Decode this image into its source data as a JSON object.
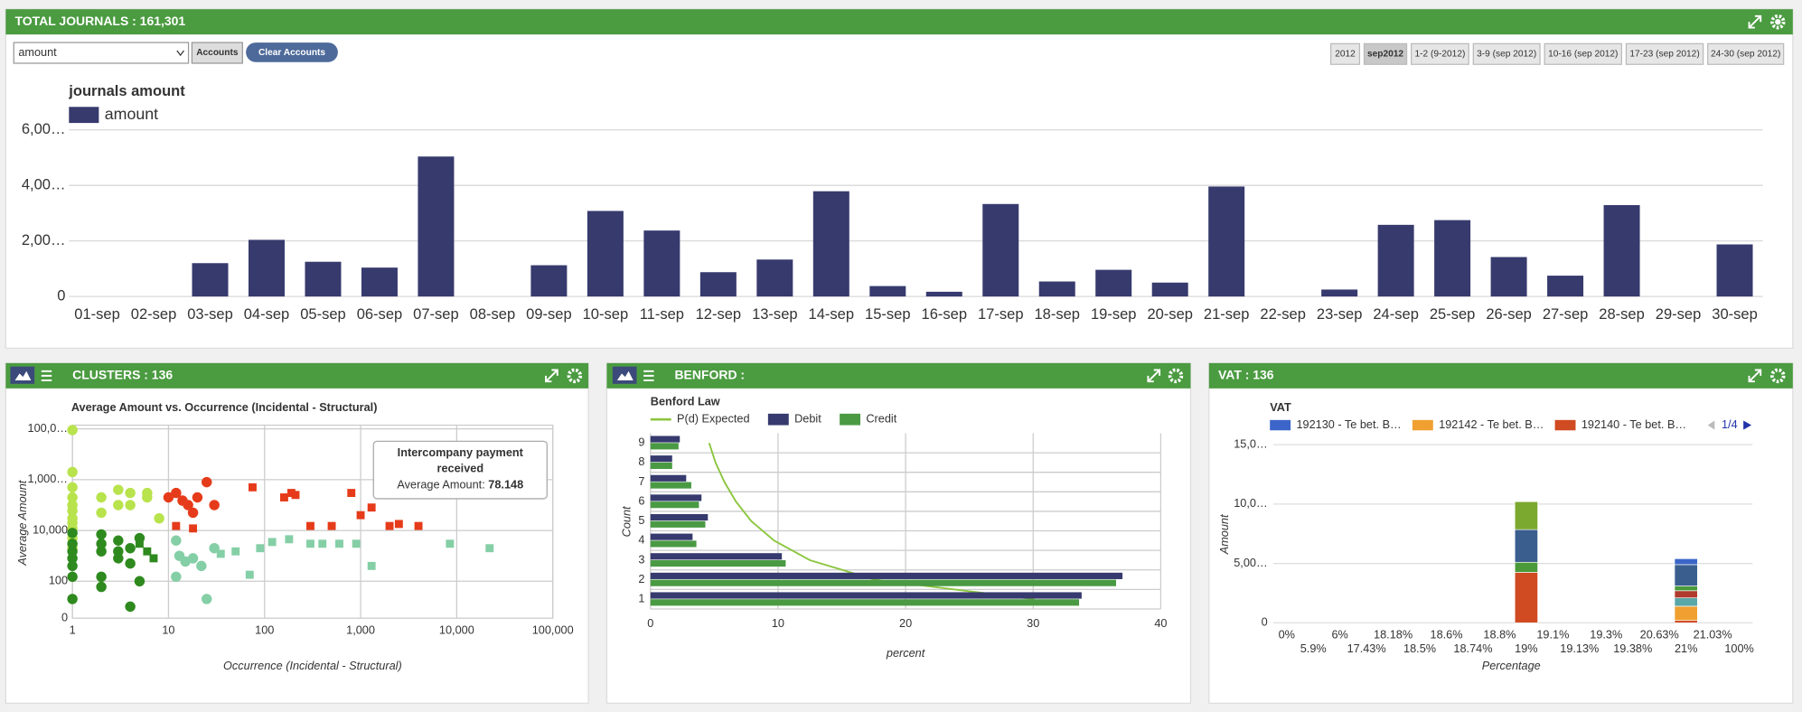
{
  "top_panel": {
    "header": "TOTAL JOURNALS : 161,301",
    "select": "amount",
    "buttons": [
      "Accounts",
      "Clear Accounts"
    ],
    "periods": [
      {
        "label": "2012",
        "active": false
      },
      {
        "label": "sep2012",
        "active": true
      },
      {
        "label": "1-2 (9-2012)",
        "active": false
      },
      {
        "label": "3-9 (sep 2012)",
        "active": false
      },
      {
        "label": "10-16 (sep 2012)",
        "active": false
      },
      {
        "label": "17-23 (sep 2012)",
        "active": false
      },
      {
        "label": "24-30 (sep 2012)",
        "active": false
      }
    ]
  },
  "panels": [
    {
      "header": "CLUSTERS : 136"
    },
    {
      "header": "BENFORD :"
    },
    {
      "header": "VAT : 136"
    }
  ],
  "chart_data": [
    {
      "type": "bar",
      "title": "journals amount",
      "categories": [
        "01-sep",
        "02-sep",
        "03-sep",
        "04-sep",
        "05-sep",
        "06-sep",
        "07-sep",
        "08-sep",
        "09-sep",
        "10-sep",
        "11-sep",
        "12-sep",
        "13-sep",
        "14-sep",
        "15-sep",
        "16-sep",
        "17-sep",
        "18-sep",
        "19-sep",
        "20-sep",
        "21-sep",
        "22-sep",
        "23-sep",
        "24-sep",
        "25-sep",
        "26-sep",
        "27-sep",
        "28-sep",
        "29-sep",
        "30-sep"
      ],
      "series": [
        {
          "name": "amount",
          "color": "#373a6d",
          "values": [
            0,
            0,
            1200,
            2040,
            1250,
            1040,
            5040,
            0,
            1125,
            3080,
            2375,
            875,
            1330,
            3790,
            375,
            170,
            3330,
            540,
            960,
            500,
            3960,
            0,
            250,
            2580,
            2750,
            1420,
            750,
            3290,
            0,
            1875
          ]
        }
      ],
      "ylim": [
        0,
        6000
      ],
      "yticks": [
        0,
        {
          "value": 2000,
          "label": "2,00…"
        },
        {
          "value": 4000,
          "label": "4,00…"
        },
        {
          "value": 6000,
          "label": "6,00…"
        }
      ],
      "grid": true
    },
    {
      "type": "scatter",
      "title": "Average Amount vs. Occurrence (Incidental - Structural)",
      "x_label": "Occurrence (Incidental - Structural)",
      "y_label": "Average Amount",
      "xlog": true,
      "ylog": true,
      "xlim": [
        1,
        100000
      ],
      "ylim": [
        3.5,
        140000000
      ],
      "xticks": [
        1,
        10,
        100,
        {
          "value": 1000,
          "label": "1,000"
        },
        {
          "value": 10000,
          "label": "10,000"
        },
        {
          "value": 100000,
          "label": "100,000"
        }
      ],
      "yticks": [
        100,
        {
          "value": 10000,
          "label": "10,000"
        },
        {
          "value": 1000000,
          "label": "1,000…"
        },
        {
          "value": 100000000,
          "label": "100,0…"
        }
      ],
      "y_floor_label": "0",
      "grid": true,
      "series": [
        {
          "color": "#b8e34c",
          "marker": "circle",
          "x": [
            1,
            1,
            1,
            1,
            1,
            1,
            1,
            1,
            1,
            1,
            1,
            2,
            2,
            3,
            3,
            4,
            4,
            6,
            6,
            8
          ],
          "values": [
            90000000,
            2000000,
            500000,
            200000,
            100000,
            60000,
            30000,
            20000,
            12000,
            5000,
            2000,
            200000,
            50000,
            400000,
            100000,
            300000,
            100000,
            200000,
            300000,
            30000
          ]
        },
        {
          "color": "#2e8a1e",
          "marker": "circle",
          "x": [
            1,
            1,
            1,
            1,
            1,
            1,
            1,
            2,
            2,
            2,
            2,
            2,
            3,
            3,
            3,
            4,
            4,
            4,
            5,
            5
          ],
          "values": [
            8000,
            3000,
            1500,
            800,
            400,
            150,
            20,
            7000,
            3000,
            1500,
            150,
            60,
            4000,
            1500,
            800,
            2000,
            500,
            10,
            5000,
            100
          ]
        },
        {
          "color": "#2e8a1e",
          "marker": "square",
          "x": [
            5,
            6,
            7
          ],
          "values": [
            3000,
            1500,
            800
          ]
        },
        {
          "color": "#85cfa6",
          "marker": "circle",
          "x": [
            12,
            13,
            15,
            18,
            12,
            22,
            25,
            30
          ],
          "values": [
            4000,
            1000,
            600,
            800,
            150,
            400,
            20,
            2000
          ]
        },
        {
          "color": "#85cfa6",
          "marker": "square",
          "x": [
            35,
            50,
            70,
            90,
            120,
            180,
            300,
            400,
            600,
            900,
            1300,
            8500,
            22000
          ],
          "values": [
            1200,
            1500,
            180,
            2000,
            3500,
            4500,
            3000,
            3000,
            3000,
            3000,
            400,
            3000,
            2000
          ]
        },
        {
          "color": "#e63b1a",
          "marker": "circle",
          "x": [
            10,
            12,
            14,
            16,
            20,
            25,
            18,
            30
          ],
          "values": [
            200000,
            300000,
            150000,
            100000,
            200000,
            800000,
            50000,
            100000
          ]
        },
        {
          "color": "#e63b1a",
          "marker": "square",
          "x": [
            12,
            18,
            75,
            160,
            190,
            210,
            300,
            500,
            800,
            1000,
            1300,
            2000,
            2500,
            4000
          ],
          "values": [
            15000,
            12000,
            500000,
            200000,
            300000,
            250000,
            15000,
            15000,
            300000,
            40000,
            80000,
            15000,
            18000,
            15000
          ]
        }
      ],
      "tooltip": {
        "title": "Intercompany payment received",
        "label": "Average Amount:",
        "value": 78.148
      }
    },
    {
      "type": "hbar",
      "title": "Benford Law",
      "x_label": "percent",
      "y_label": "Count",
      "categories": [
        1,
        2,
        3,
        4,
        5,
        6,
        7,
        8,
        9
      ],
      "xlim": [
        0,
        40
      ],
      "xticks": [
        0,
        10,
        20,
        30,
        40
      ],
      "grid": true,
      "series": [
        {
          "name": "P(d) Expected",
          "kind": "line",
          "color": "#8cc63f",
          "values": [
            30.1,
            17.6,
            12.5,
            9.7,
            7.9,
            6.7,
            5.8,
            5.1,
            4.6
          ]
        },
        {
          "name": "Debit",
          "color": "#363a6e",
          "values": [
            33.8,
            37,
            10.3,
            3.3,
            4.5,
            4,
            2.8,
            1.7,
            2.3
          ]
        },
        {
          "name": "Credit",
          "color": "#4a9a44",
          "values": [
            33.6,
            36.5,
            10.6,
            3.6,
            4.3,
            3.8,
            3.2,
            1.7,
            2.2
          ]
        }
      ]
    },
    {
      "type": "stacked_bar",
      "title": "VAT",
      "x_label": "Percentage",
      "y_label": "Amount",
      "categories": [
        "0%",
        "5.9%",
        "6%",
        "17.43%",
        "18.18%",
        "18.5%",
        "18.6%",
        "18.74%",
        "18.8%",
        "19%",
        "19.1%",
        "19.13%",
        "19.3%",
        "19.38%",
        "20.63%",
        "21%",
        "21.03%",
        "100%"
      ],
      "ylim": [
        0,
        15000
      ],
      "yticks": [
        0,
        {
          "value": 5000,
          "label": "5,00…"
        },
        {
          "value": 10000,
          "label": "10,0…"
        },
        {
          "value": 15000,
          "label": "15,0…"
        }
      ],
      "grid": true,
      "legend_page": "1/4",
      "series": [
        {
          "name": "192130 - Te bet. B…",
          "color": "#3b65c8",
          "values": [
            0,
            0,
            0,
            0,
            0,
            0,
            0,
            0,
            0,
            0,
            0,
            0,
            0,
            0,
            0,
            500,
            0,
            0
          ]
        },
        {
          "color": "#7ba82e",
          "values": [
            0,
            0,
            0,
            0,
            0,
            0,
            0,
            0,
            0,
            2350,
            0,
            0,
            0,
            0,
            0,
            0,
            0,
            0
          ]
        },
        {
          "color": "#3a5f8f",
          "values": [
            0,
            0,
            0,
            0,
            0,
            0,
            0,
            0,
            0,
            2750,
            0,
            0,
            0,
            0,
            0,
            1800,
            0,
            0
          ]
        },
        {
          "color": "#4a9a3a",
          "values": [
            0,
            0,
            0,
            0,
            0,
            0,
            0,
            0,
            0,
            850,
            0,
            0,
            0,
            0,
            0,
            400,
            0,
            0
          ]
        },
        {
          "color": "#b03a2e",
          "values": [
            0,
            0,
            0,
            0,
            0,
            0,
            0,
            0,
            0,
            0,
            0,
            0,
            0,
            0,
            0,
            600,
            0,
            0
          ]
        },
        {
          "color": "#5aa7a8",
          "values": [
            0,
            0,
            0,
            0,
            0,
            0,
            0,
            0,
            0,
            0,
            0,
            0,
            0,
            0,
            0,
            700,
            0,
            0
          ]
        },
        {
          "name": "192142 - Te bet. B…",
          "color": "#f0a030",
          "values": [
            0,
            0,
            0,
            0,
            0,
            0,
            0,
            0,
            0,
            0,
            0,
            0,
            0,
            0,
            0,
            1200,
            0,
            0
          ]
        },
        {
          "name": "192140 - Te bet. B…",
          "color": "#d04a22",
          "values": [
            0,
            0,
            0,
            0,
            0,
            0,
            0,
            0,
            0,
            4250,
            0,
            0,
            0,
            0,
            0,
            200,
            0,
            0
          ]
        }
      ]
    }
  ]
}
